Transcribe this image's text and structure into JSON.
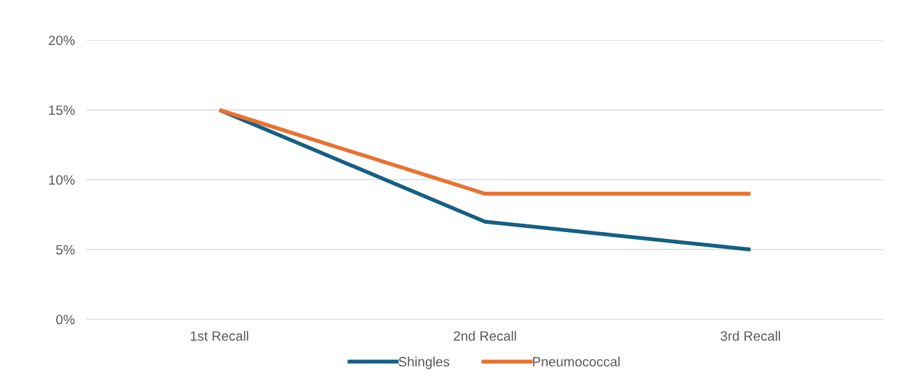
{
  "chart_data": {
    "type": "line",
    "categories": [
      "1st Recall",
      "2nd Recall",
      "3rd Recall"
    ],
    "series": [
      {
        "name": "Shingles",
        "color": "#156082",
        "values": [
          15,
          7,
          5
        ]
      },
      {
        "name": "Pneumococcal",
        "color": "#e97132",
        "values": [
          15,
          9,
          9
        ]
      }
    ],
    "ylim": [
      0,
      20
    ],
    "yticks": [
      {
        "value": 0,
        "label": "0%"
      },
      {
        "value": 5,
        "label": "5%"
      },
      {
        "value": 10,
        "label": "10%"
      },
      {
        "value": 15,
        "label": "15%"
      },
      {
        "value": 20,
        "label": "20%"
      }
    ],
    "grid": "y",
    "legend": "bottom",
    "marker": "none",
    "line_style": "solid"
  }
}
